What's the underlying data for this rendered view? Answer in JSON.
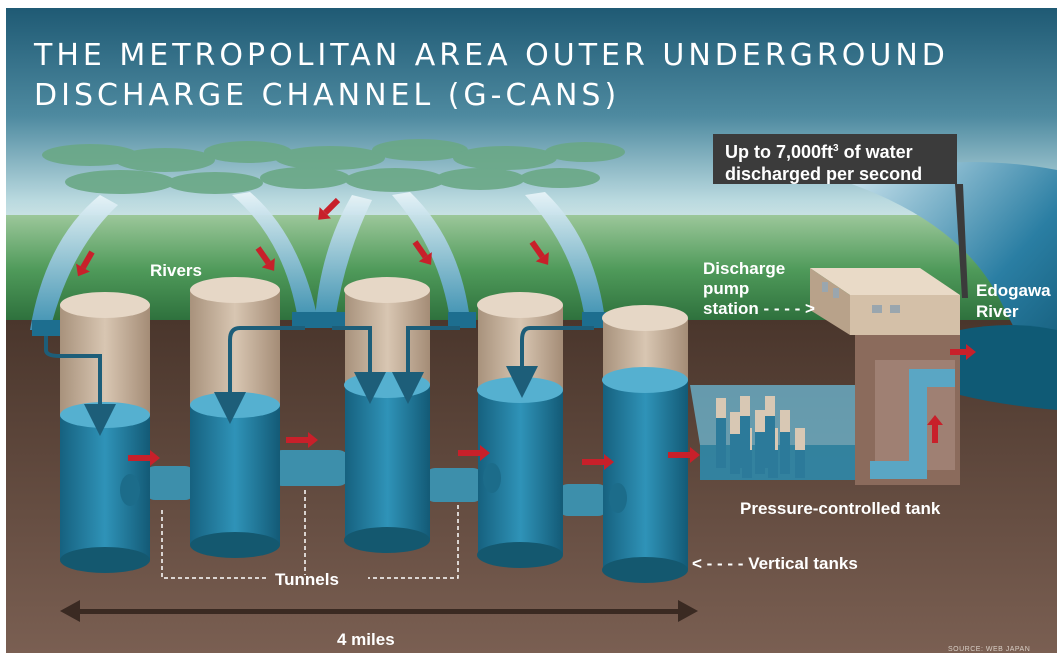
{
  "title": {
    "line1": "THE METROPOLITAN AREA OUTER UNDERGROUND",
    "line2": "DISCHARGE CHANNEL (G-CANS)"
  },
  "callout": {
    "prefix": "Up to 7,000ft",
    "superscript": "3",
    "suffix": " of water",
    "line2": "discharged per second"
  },
  "labels": {
    "rivers": "Rivers",
    "discharge_pump_station": [
      "Discharge",
      "pump",
      "station - - - - >"
    ],
    "edogawa_river": [
      "Edogawa",
      "River"
    ],
    "pressure_controlled_tank": "Pressure-controlled tank",
    "vertical_tanks": "< - - - - Vertical tanks",
    "tunnels": "Tunnels",
    "distance": "4 miles",
    "source": "SOURCE: WEB JAPAN"
  },
  "colors": {
    "sky_top": "#1f5a74",
    "sky_mid": "#a8cfd8",
    "grass": "#2f7a40",
    "soil": "#5a4236",
    "water": "#2a8ab0",
    "shaft": "#c9b59e",
    "arrow": "#c8202a",
    "callout_bg": "#3b3b3b"
  }
}
